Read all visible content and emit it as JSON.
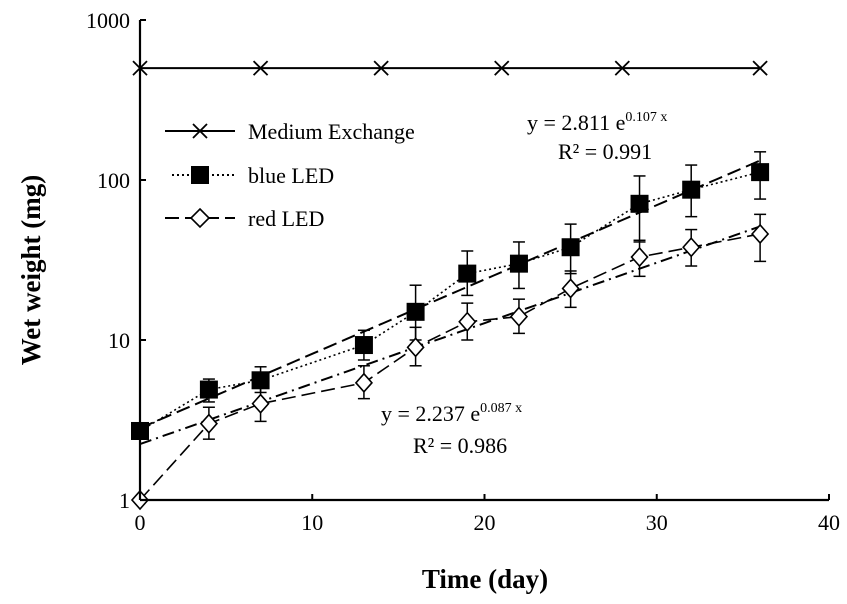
{
  "chart_data": {
    "type": "scatter",
    "xlabel": "Time (day)",
    "ylabel": "Wet weight (mg)",
    "xlim": [
      0,
      40
    ],
    "ylim": [
      1,
      1000
    ],
    "y_scale": "log",
    "x_ticks": [
      0,
      10,
      20,
      30,
      40
    ],
    "x_tick_labels": [
      "0",
      "10",
      "20",
      "30",
      "40"
    ],
    "y_ticks": [
      1,
      10,
      100,
      1000
    ],
    "y_tick_labels": [
      "1",
      "10",
      "100",
      "1000"
    ],
    "grid": false,
    "legend_position": "upper-left",
    "series": [
      {
        "name": "Medium Exchange",
        "marker": "x",
        "line_style": "solid",
        "x": [
          0,
          7,
          14,
          21,
          28,
          36
        ],
        "y": [
          500,
          500,
          500,
          500,
          500,
          500
        ]
      },
      {
        "name": "blue LED",
        "marker": "filled-square",
        "line_style": "dotted",
        "x": [
          0,
          4,
          7,
          13,
          16,
          19,
          22,
          25,
          29,
          32,
          36
        ],
        "y": [
          2.7,
          4.9,
          5.6,
          9.3,
          15,
          26,
          30,
          38,
          71,
          87,
          112
        ],
        "err_low": [
          2.4,
          4.1,
          4.7,
          7.5,
          10,
          19,
          21,
          26,
          41,
          59,
          76
        ],
        "err_high": [
          3.0,
          5.7,
          6.8,
          11.5,
          22,
          36,
          41,
          53,
          106,
          124,
          150
        ],
        "fit": {
          "a": 2.811,
          "b": 0.107,
          "dash": "long-dash"
        }
      },
      {
        "name": "red LED",
        "marker": "open-diamond",
        "line_style": "long-dash",
        "x": [
          0,
          4,
          7,
          13,
          16,
          19,
          22,
          25,
          29,
          32,
          36
        ],
        "y": [
          1.0,
          3.0,
          4.0,
          5.4,
          9.0,
          13,
          14,
          21,
          33,
          38,
          46
        ],
        "err_low": [
          1.0,
          2.4,
          3.1,
          4.3,
          6.9,
          10,
          11,
          16,
          25,
          29,
          31
        ],
        "err_high": [
          1.0,
          3.8,
          5.1,
          6.9,
          12,
          17,
          18,
          27,
          42,
          49,
          61
        ],
        "fit": {
          "a": 2.237,
          "b": 0.087,
          "dash": "dash-dot"
        }
      }
    ],
    "annotations": {
      "blue_eq_main": "y = 2.811 e",
      "blue_eq_exp": "0.107 x",
      "blue_r2": "R² = 0.991",
      "red_eq_main": "y = 2.237 e",
      "red_eq_exp": "0.087 x",
      "red_r2": "R² = 0.986"
    }
  }
}
